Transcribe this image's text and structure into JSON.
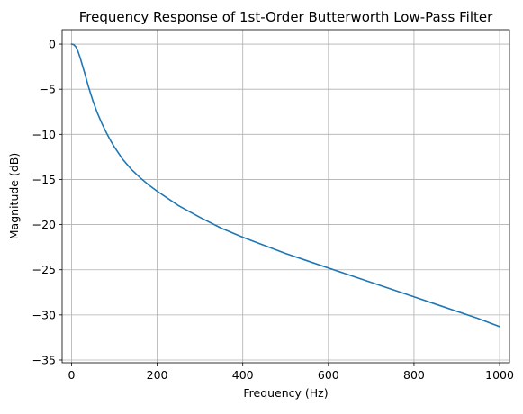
{
  "colors": {
    "line": "#1f77b4",
    "grid": "#b0b0b0",
    "axes": "#000000",
    "background": "#ffffff"
  },
  "chart_data": {
    "type": "line",
    "title": "Frequency Response of 1st-Order Butterworth Low-Pass Filter",
    "xlabel": "Frequency (Hz)",
    "ylabel": "Magnitude (dB)",
    "xlim": [
      -22,
      1023
    ],
    "ylim": [
      -35.3,
      1.6
    ],
    "xticks": [
      0,
      200,
      400,
      600,
      800,
      1000
    ],
    "xtick_labels": [
      "0",
      "200",
      "400",
      "600",
      "800",
      "1000"
    ],
    "yticks": [
      0,
      -5,
      -10,
      -15,
      -20,
      -25,
      -30,
      -35
    ],
    "ytick_labels": [
      "0",
      "−5",
      "−10",
      "−15",
      "−20",
      "−25",
      "−30",
      "−35"
    ],
    "grid": true,
    "legend": "none",
    "series": [
      {
        "x": [
          0,
          5,
          10,
          15,
          20,
          25,
          30,
          40,
          50,
          60,
          70,
          80,
          90,
          100,
          120,
          140,
          160,
          180,
          200,
          250,
          300,
          350,
          400,
          450,
          500,
          550,
          600,
          650,
          700,
          750,
          800,
          850,
          900,
          950,
          1000
        ],
        "y": [
          0,
          -0.05,
          -0.3,
          -0.8,
          -1.5,
          -2.3,
          -3.1,
          -4.8,
          -6.3,
          -7.6,
          -8.7,
          -9.7,
          -10.6,
          -11.4,
          -12.8,
          -13.9,
          -14.8,
          -15.6,
          -16.3,
          -17.9,
          -19.2,
          -20.4,
          -21.4,
          -22.3,
          -23.2,
          -24.0,
          -24.8,
          -25.6,
          -26.4,
          -27.2,
          -28.0,
          -28.8,
          -29.6,
          -30.4,
          -31.3
        ]
      }
    ]
  }
}
